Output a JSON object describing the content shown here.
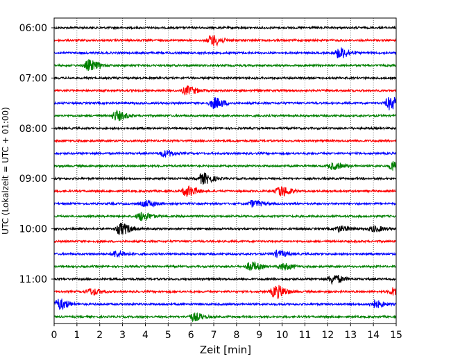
{
  "chart_data": {
    "type": "line",
    "xlabel": "Zeit  [min]",
    "ylabel": "UTC (Lokalzeit = UTC + 01:00)",
    "xlim": [
      0,
      15
    ],
    "x_ticks": [
      "0",
      "1",
      "2",
      "3",
      "4",
      "5",
      "6",
      "7",
      "8",
      "9",
      "10",
      "11",
      "12",
      "13",
      "14",
      "15"
    ],
    "y_ticks": [
      "06:00",
      "07:00",
      "08:00",
      "09:00",
      "10:00",
      "11:00"
    ],
    "grid": "vertical dotted",
    "trace_interval_min": 15,
    "first_trace": "06:00",
    "trace_count": 24,
    "color_cycle": [
      "#000000",
      "#ff0000",
      "#0000ff",
      "#008000"
    ],
    "events": [
      {
        "trace": 1,
        "x": 6.9,
        "amp": 1.0
      },
      {
        "trace": 2,
        "x": 12.5,
        "amp": 1.0
      },
      {
        "trace": 3,
        "x": 1.5,
        "amp": 1.0
      },
      {
        "trace": 5,
        "x": 5.8,
        "amp": 0.8
      },
      {
        "trace": 6,
        "x": 7.0,
        "amp": 1.0
      },
      {
        "trace": 6,
        "x": 14.7,
        "amp": 1.2
      },
      {
        "trace": 7,
        "x": 2.7,
        "amp": 0.9
      },
      {
        "trace": 10,
        "x": 4.8,
        "amp": 0.6
      },
      {
        "trace": 11,
        "x": 12.2,
        "amp": 0.6
      },
      {
        "trace": 11,
        "x": 14.9,
        "amp": 1.2
      },
      {
        "trace": 12,
        "x": 6.5,
        "amp": 1.0
      },
      {
        "trace": 13,
        "x": 5.8,
        "amp": 1.0
      },
      {
        "trace": 13,
        "x": 9.9,
        "amp": 1.0
      },
      {
        "trace": 14,
        "x": 4.0,
        "amp": 0.6
      },
      {
        "trace": 14,
        "x": 8.7,
        "amp": 0.6
      },
      {
        "trace": 15,
        "x": 3.8,
        "amp": 0.8
      },
      {
        "trace": 16,
        "x": 2.9,
        "amp": 1.1
      },
      {
        "trace": 16,
        "x": 12.5,
        "amp": 0.5
      },
      {
        "trace": 16,
        "x": 14.0,
        "amp": 0.5
      },
      {
        "trace": 18,
        "x": 2.7,
        "amp": 0.6
      },
      {
        "trace": 18,
        "x": 9.8,
        "amp": 0.6
      },
      {
        "trace": 19,
        "x": 8.6,
        "amp": 0.8
      },
      {
        "trace": 19,
        "x": 10.0,
        "amp": 0.6
      },
      {
        "trace": 20,
        "x": 12.2,
        "amp": 0.9
      },
      {
        "trace": 21,
        "x": 9.7,
        "amp": 1.2
      },
      {
        "trace": 21,
        "x": 1.6,
        "amp": 0.6
      },
      {
        "trace": 21,
        "x": 14.9,
        "amp": 0.8
      },
      {
        "trace": 22,
        "x": 0.2,
        "amp": 1.0
      },
      {
        "trace": 22,
        "x": 14.0,
        "amp": 0.7
      },
      {
        "trace": 23,
        "x": 6.1,
        "amp": 0.7
      }
    ]
  }
}
